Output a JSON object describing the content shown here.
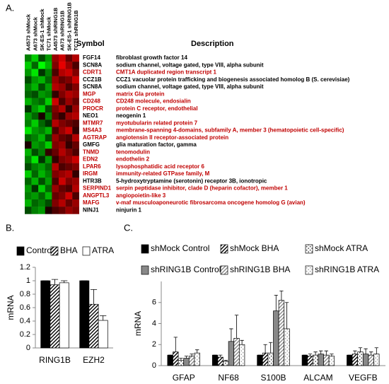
{
  "chart_data": [
    {
      "type": "heatmap",
      "panel": "A.",
      "columns": [
        "A4573 shMock",
        "A673 shMock",
        "SK-ES-1 shMock",
        "TC71 shMock",
        "A4573 shRING1B",
        "A673 shRING1B",
        "SK-ES-1 shRING1B",
        "TC71 shRING1B"
      ],
      "symbol_header": "Symbol",
      "description_header": "Description",
      "rows": [
        "FGF14",
        "SCN8A",
        "CDRT1",
        "CCZ1B",
        "SCN8A",
        "MGP",
        "CD248",
        "PROCR",
        "NEO1",
        "MTMR7",
        "MS4A3",
        "AGTRAP",
        "GMFG",
        "TNMD",
        "EDN2",
        "LPAR6",
        "IRGM",
        "HTR3B",
        "SERPIND1",
        "ANGPTL3",
        "MAFG",
        "NINJ1"
      ],
      "descriptions": [
        "fibroblast growth factor 14",
        "sodium channel, voltage gated, type VIII, alpha subunit",
        "CMT1A duplicated region transcript 1",
        "CCZ1 vacuolar protein trafficking and biogenesis associated homolog B (S. cerevisiae)",
        "sodium channel, voltage gated, type VIII, alpha subunit",
        "matrix Gla protein",
        "CD248 molecule, endosialin",
        "protein C receptor, endothelial",
        "neogenin 1",
        "myotubularin related protein 7",
        "membrane-spanning 4-domains, subfamily A, member 3 (hematopoietic cell-specific)",
        "angiotensin II receptor-associated protein",
        "glia maturation factor, gamma",
        "tenomodulin",
        "endothelin 2",
        "lysophosphatidic acid receptor 6",
        "immunity-related GTPase family, M",
        "5-hydroxytryptamine (serotonin) receptor 3B, ionotropic",
        "serpin peptidase inhibitor, clade D (heparin cofactor), member 1",
        "angiopoietin-like 3",
        "v-maf musculoaponeurotic fibrosarcoma oncogene homolog G (avian)",
        "ninjurin 1"
      ],
      "label_colors": [
        "#000000",
        "#000000",
        "#c00000",
        "#000000",
        "#000000",
        "#c00000",
        "#c00000",
        "#c00000",
        "#000000",
        "#c00000",
        "#c00000",
        "#c00000",
        "#000000",
        "#c00000",
        "#c00000",
        "#c00000",
        "#c00000",
        "#000000",
        "#c00000",
        "#c00000",
        "#c00000",
        "#000000"
      ],
      "colorscale": [
        "#00ff00",
        "#000000",
        "#ff0000"
      ],
      "values": [
        [
          -0.5,
          -0.8,
          -0.3,
          -0.6,
          0.6,
          0.8,
          0.4,
          0.7
        ],
        [
          -0.8,
          -0.4,
          -1,
          -0.7,
          0.5,
          0.9,
          0.6,
          0.3
        ],
        [
          -0.6,
          -0.9,
          -0.2,
          -0.5,
          0.3,
          0.7,
          0.8,
          0.5
        ],
        [
          -0.3,
          -0.6,
          -0.7,
          -0.4,
          0.6,
          0.4,
          0.5,
          0.8
        ],
        [
          -0.5,
          -0.7,
          -0.3,
          -0.6,
          0.7,
          0.6,
          0.3,
          0.5
        ],
        [
          -0.4,
          -0.3,
          -0.6,
          -0.5,
          0.2,
          0.5,
          0.7,
          0.6
        ],
        [
          -0.7,
          -0.5,
          -0.4,
          -0.8,
          0.8,
          0.3,
          0.6,
          0.4
        ],
        [
          -0.2,
          -0.6,
          -0.8,
          -0.3,
          0.5,
          0.7,
          0.2,
          0.6
        ],
        [
          -0.6,
          -0.4,
          0.1,
          -0.5,
          0.4,
          0.2,
          0.6,
          0.7
        ],
        [
          -0.5,
          -0.8,
          -0.4,
          -0.2,
          0.7,
          0.5,
          0.4,
          0.3
        ],
        [
          -0.9,
          -0.6,
          -0.5,
          -0.7,
          0.3,
          0.6,
          0.8,
          0.2
        ],
        [
          -0.4,
          -0.5,
          -0.7,
          -0.3,
          0.6,
          0.4,
          0.3,
          0.7
        ],
        [
          0.1,
          -0.6,
          -0.5,
          -0.8,
          0.5,
          0.6,
          0.2,
          0.4
        ],
        [
          -0.7,
          -0.3,
          -0.5,
          0.2,
          0.4,
          0.7,
          0.5,
          0.3
        ],
        [
          -0.5,
          -0.9,
          -0.2,
          -0.6,
          0.2,
          0.5,
          0.6,
          0.8
        ],
        [
          -0.3,
          -0.5,
          -0.6,
          -0.4,
          0.7,
          0.3,
          0.4,
          0.5
        ],
        [
          -0.8,
          -0.4,
          -0.7,
          -0.5,
          0.5,
          0.6,
          0.7,
          0.2
        ],
        [
          -0.4,
          -0.7,
          -0.3,
          -0.6,
          0.3,
          0.8,
          0.5,
          0.6
        ],
        [
          -0.6,
          -0.2,
          -0.8,
          -0.4,
          0.6,
          0.4,
          0.3,
          0.7
        ],
        [
          -0.5,
          -0.6,
          -0.4,
          -0.7,
          0.4,
          0.5,
          0.8,
          0.3
        ],
        [
          -0.7,
          -0.4,
          -0.5,
          -0.3,
          0.5,
          0.7,
          0.4,
          0.6
        ],
        [
          -0.3,
          -0.5,
          -0.6,
          0.1,
          0.3,
          0.4,
          0.6,
          0.5
        ]
      ]
    },
    {
      "type": "bar",
      "panel": "B.",
      "y_label": "mRNA",
      "categories": [
        "RING1B",
        "EZH2"
      ],
      "series": [
        {
          "name": "Control",
          "color": "#000000",
          "pattern": "solid",
          "values": [
            1,
            1
          ],
          "error": [
            0,
            0
          ]
        },
        {
          "name": "BHA",
          "color": "#000000",
          "pattern": "hatch",
          "values": [
            0.94,
            0.65
          ],
          "error": [
            0.08,
            0.22
          ]
        },
        {
          "name": "ATRA",
          "color": "#ffffff",
          "pattern": "solid",
          "values": [
            0.97,
            0.41
          ],
          "error": [
            0.03,
            0.07
          ]
        }
      ],
      "ylim": [
        0,
        1.2
      ],
      "yticks": [
        0,
        0.2,
        0.4,
        0.6,
        0.8,
        1,
        1.2
      ]
    },
    {
      "type": "bar",
      "panel": "C.",
      "y_label": "mRNA",
      "categories": [
        "GFAP",
        "NF68",
        "S100B",
        "ALCAM",
        "VEGFB"
      ],
      "series": [
        {
          "name": "shMock Control",
          "color": "#000000",
          "pattern": "solid",
          "values": [
            1,
            1,
            1,
            1,
            1
          ],
          "error": [
            0,
            0,
            0,
            0,
            0
          ]
        },
        {
          "name": "shMock BHA",
          "color": "#000000",
          "pattern": "hatch",
          "values": [
            1.3,
            0.8,
            1.2,
            0.9,
            1.1
          ],
          "error": [
            1.4,
            0.2,
            0.8,
            0.2,
            0.3
          ]
        },
        {
          "name": "shMock ATRA",
          "color": "#555555",
          "pattern": "dots",
          "values": [
            0.5,
            0.4,
            1.2,
            1,
            1.3
          ],
          "error": [
            0.2,
            0.1,
            1,
            0.3,
            0.4
          ]
        },
        {
          "name": "shRING1B Control",
          "color": "#888888",
          "pattern": "solid",
          "values": [
            0.7,
            2.3,
            5.2,
            1.1,
            1.1
          ],
          "error": [
            0.2,
            1.2,
            1.5,
            0.3,
            0.5
          ]
        },
        {
          "name": "shRING1B BHA",
          "color": "#888888",
          "pattern": "hatch",
          "values": [
            0.9,
            2.6,
            6.2,
            1,
            1
          ],
          "error": [
            0.2,
            2.2,
            0.9,
            0.4,
            0.3
          ]
        },
        {
          "name": "shRING1B ATRA",
          "color": "#aaaaaa",
          "pattern": "dots",
          "values": [
            1.2,
            2,
            3.5,
            0.9,
            1.1
          ],
          "error": [
            0.3,
            0.4,
            2.5,
            0.2,
            0.6
          ]
        }
      ],
      "ylim": [
        0,
        8
      ],
      "yticks": [
        0,
        2,
        4,
        6
      ]
    }
  ]
}
